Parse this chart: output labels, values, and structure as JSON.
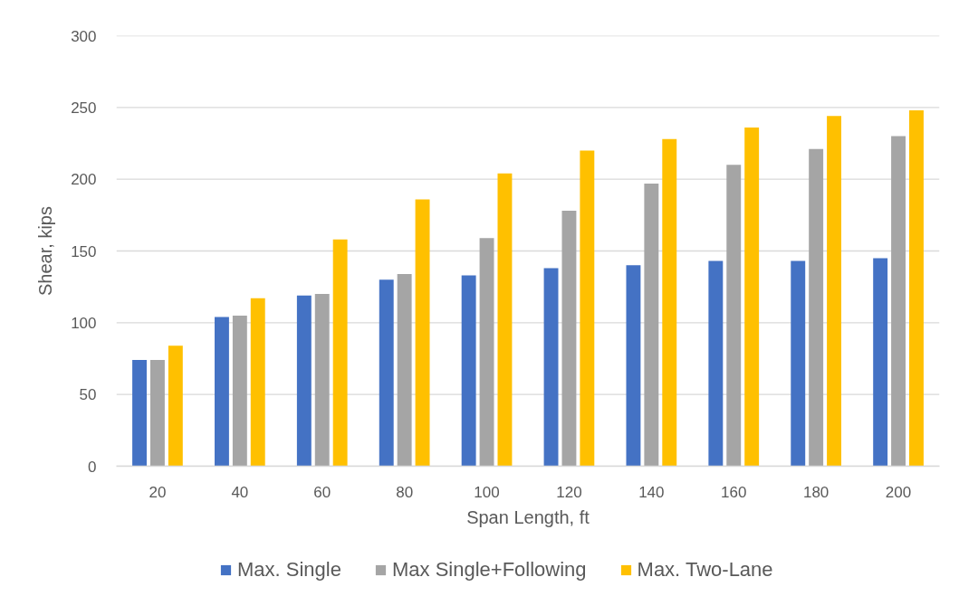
{
  "chart_data": {
    "type": "bar",
    "xlabel": "Span Length, ft",
    "ylabel": "Shear, kips",
    "categories": [
      "20",
      "40",
      "60",
      "80",
      "100",
      "120",
      "140",
      "160",
      "180",
      "200"
    ],
    "series": [
      {
        "name": "Max. Single",
        "color": "#4472c4",
        "values": [
          74,
          104,
          119,
          130,
          133,
          138,
          140,
          143,
          143,
          145
        ]
      },
      {
        "name": "Max Single+Following",
        "color": "#a5a5a5",
        "values": [
          74,
          105,
          120,
          134,
          159,
          178,
          197,
          210,
          221,
          230
        ]
      },
      {
        "name": "Max. Two-Lane",
        "color": "#ffc000",
        "values": [
          84,
          117,
          158,
          186,
          204,
          220,
          228,
          236,
          244,
          248
        ]
      }
    ],
    "ylim": [
      0,
      300
    ],
    "yticks": [
      0,
      50,
      100,
      150,
      200,
      250,
      300
    ],
    "grid": "y",
    "legend": "bottom"
  }
}
